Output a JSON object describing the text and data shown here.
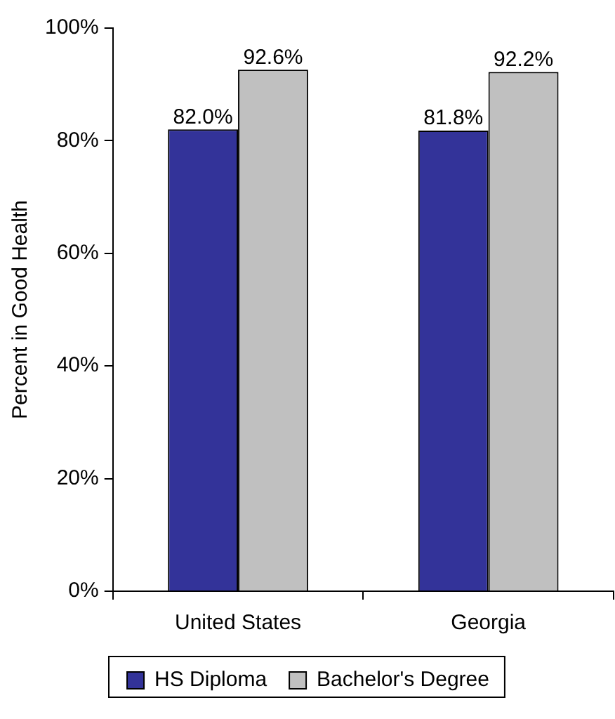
{
  "chart_data": {
    "type": "bar",
    "ylabel": "Percent in Good Health",
    "categories": [
      "United States",
      "Georgia"
    ],
    "series": [
      {
        "name": "HS Diploma",
        "color": "#333399",
        "values": [
          82.0,
          81.8
        ],
        "value_labels": [
          "82.0%",
          "81.8%"
        ]
      },
      {
        "name": "Bachelor's Degree",
        "color": "#c0c0c0",
        "values": [
          92.6,
          92.2
        ],
        "value_labels": [
          "92.6%",
          "92.2%"
        ]
      }
    ],
    "ylim": [
      0,
      100
    ],
    "yticks": [
      {
        "value": 0,
        "label": "0%"
      },
      {
        "value": 20,
        "label": "20%"
      },
      {
        "value": 40,
        "label": "40%"
      },
      {
        "value": 60,
        "label": "60%"
      },
      {
        "value": 80,
        "label": "80%"
      },
      {
        "value": 100,
        "label": "100%"
      }
    ],
    "grid": false,
    "legend": "bottom"
  }
}
